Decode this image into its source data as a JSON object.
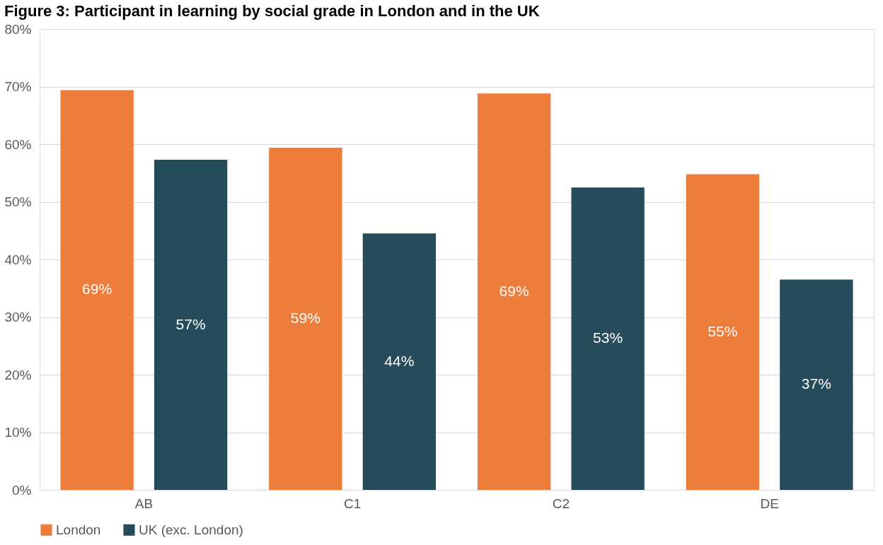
{
  "chart_data": {
    "type": "bar",
    "title": "Figure 3: Participant in learning by social grade in London and in the UK",
    "categories": [
      "AB",
      "C1",
      "C2",
      "DE"
    ],
    "series": [
      {
        "name": "London",
        "color": "#ed7d3a",
        "values": [
          69.4,
          59.4,
          68.8,
          54.8
        ],
        "value_labels": [
          "69%",
          "59%",
          "69%",
          "55%"
        ]
      },
      {
        "name": "UK (exc. London)",
        "color": "#264b5a",
        "values": [
          57.3,
          44.5,
          52.5,
          36.5
        ],
        "value_labels": [
          "57%",
          "44%",
          "53%",
          "37%"
        ]
      }
    ],
    "ylim": [
      0,
      80
    ],
    "yticks": [
      {
        "value": 0,
        "label": "0%"
      },
      {
        "value": 10,
        "label": "10%"
      },
      {
        "value": 20,
        "label": "20%"
      },
      {
        "value": 30,
        "label": "30%"
      },
      {
        "value": 40,
        "label": "40%"
      },
      {
        "value": 50,
        "label": "50%"
      },
      {
        "value": 60,
        "label": "60%"
      },
      {
        "value": 70,
        "label": "70%"
      },
      {
        "value": 80,
        "label": "80%"
      }
    ],
    "grid": "y",
    "legend": "bottom"
  }
}
